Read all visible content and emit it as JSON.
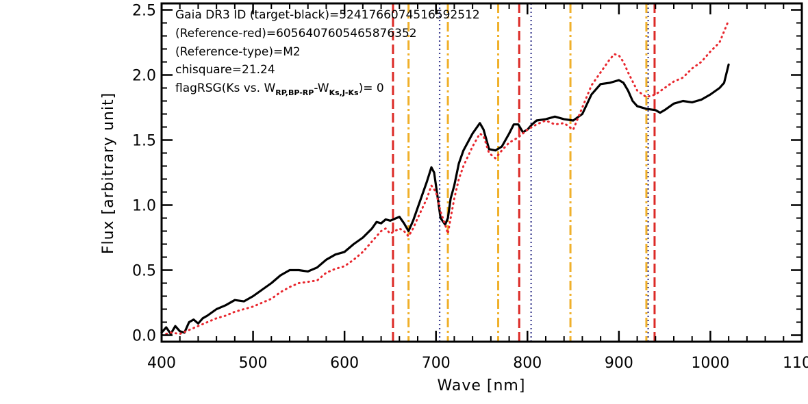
{
  "chart_data": {
    "type": "line",
    "xlabel": "Wave [nm]",
    "ylabel": "Flux [arbitrary unit]",
    "xlim": [
      400,
      1100
    ],
    "ylim": [
      -0.05,
      2.55
    ],
    "xticks": [
      400,
      500,
      600,
      700,
      800,
      900,
      1000,
      1100
    ],
    "xtick_labels": [
      "400",
      "500",
      "600",
      "700",
      "800",
      "900",
      "1000",
      "1100"
    ],
    "yticks": [
      0.0,
      0.5,
      1.0,
      1.5,
      2.0,
      2.5
    ],
    "ytick_labels": [
      "0.0",
      "0.5",
      "1.0",
      "1.5",
      "2.0",
      "2.5"
    ],
    "annotations": {
      "line1": "Gaia DR3 ID (target-black)=5241766074516592512",
      "line2": "(Reference-red)=6056407605465876352",
      "line3": "(Reference-type)=M2",
      "line4": "chisquare=21.24",
      "line5_pre": "flagRSG(Ks vs. W",
      "line5_sub1": "RP,BP-RP",
      "line5_mid": "-W",
      "line5_sub2": "Ks,J-Ks",
      "line5_post": ")= 0"
    },
    "series": [
      {
        "color": "#000000",
        "style": "solid",
        "x": [
          400,
          405,
          410,
          415,
          420,
          425,
          430,
          435,
          440,
          445,
          450,
          460,
          470,
          480,
          490,
          500,
          510,
          520,
          530,
          540,
          550,
          560,
          570,
          580,
          590,
          600,
          610,
          620,
          630,
          635,
          640,
          645,
          650,
          660,
          665,
          670,
          675,
          680,
          690,
          695,
          698,
          702,
          705,
          710,
          713,
          716,
          720,
          725,
          730,
          740,
          748,
          752,
          758,
          765,
          772,
          780,
          785,
          790,
          795,
          800,
          805,
          810,
          820,
          830,
          840,
          850,
          860,
          870,
          880,
          890,
          895,
          900,
          905,
          910,
          915,
          920,
          930,
          940,
          945,
          950,
          960,
          970,
          980,
          990,
          1000,
          1010,
          1015,
          1020
        ],
        "y": [
          0.02,
          0.06,
          0.01,
          0.07,
          0.03,
          0.02,
          0.1,
          0.12,
          0.09,
          0.13,
          0.15,
          0.2,
          0.23,
          0.27,
          0.26,
          0.3,
          0.35,
          0.4,
          0.46,
          0.5,
          0.5,
          0.49,
          0.52,
          0.58,
          0.62,
          0.64,
          0.7,
          0.75,
          0.82,
          0.87,
          0.86,
          0.89,
          0.88,
          0.91,
          0.86,
          0.8,
          0.88,
          0.98,
          1.18,
          1.29,
          1.25,
          1.05,
          0.9,
          0.85,
          0.9,
          1.05,
          1.15,
          1.32,
          1.42,
          1.55,
          1.63,
          1.58,
          1.43,
          1.42,
          1.45,
          1.55,
          1.62,
          1.62,
          1.56,
          1.58,
          1.62,
          1.65,
          1.66,
          1.68,
          1.66,
          1.65,
          1.7,
          1.85,
          1.93,
          1.94,
          1.95,
          1.96,
          1.94,
          1.88,
          1.8,
          1.76,
          1.74,
          1.73,
          1.71,
          1.73,
          1.78,
          1.8,
          1.79,
          1.81,
          1.85,
          1.9,
          1.94,
          2.08
        ]
      },
      {
        "color": "#e8272e",
        "style": "dotted",
        "x": [
          400,
          410,
          420,
          430,
          440,
          450,
          460,
          470,
          480,
          490,
          500,
          510,
          520,
          530,
          540,
          550,
          560,
          570,
          580,
          590,
          600,
          610,
          620,
          630,
          640,
          645,
          650,
          660,
          665,
          670,
          675,
          680,
          690,
          695,
          700,
          705,
          710,
          713,
          716,
          720,
          725,
          730,
          740,
          748,
          752,
          758,
          765,
          772,
          780,
          785,
          790,
          800,
          810,
          820,
          830,
          840,
          850,
          860,
          870,
          880,
          890,
          895,
          900,
          905,
          910,
          920,
          930,
          940,
          950,
          960,
          970,
          980,
          990,
          1000,
          1010,
          1020
        ],
        "y": [
          0.0,
          0.02,
          0.01,
          0.04,
          0.07,
          0.1,
          0.13,
          0.15,
          0.18,
          0.2,
          0.22,
          0.25,
          0.28,
          0.33,
          0.37,
          0.4,
          0.41,
          0.42,
          0.48,
          0.51,
          0.53,
          0.58,
          0.64,
          0.72,
          0.8,
          0.82,
          0.78,
          0.82,
          0.8,
          0.76,
          0.82,
          0.9,
          1.05,
          1.15,
          1.1,
          0.95,
          0.85,
          0.78,
          0.9,
          1.05,
          1.2,
          1.3,
          1.45,
          1.55,
          1.53,
          1.4,
          1.36,
          1.42,
          1.48,
          1.5,
          1.52,
          1.58,
          1.62,
          1.65,
          1.62,
          1.63,
          1.58,
          1.75,
          1.92,
          2.02,
          2.12,
          2.16,
          2.15,
          2.1,
          2.02,
          1.88,
          1.83,
          1.85,
          1.9,
          1.95,
          1.98,
          2.05,
          2.1,
          2.18,
          2.25,
          2.42
        ]
      }
    ],
    "vertical_lines": [
      {
        "x": 653,
        "color": "#dc2a26",
        "style": "dashed"
      },
      {
        "x": 670,
        "color": "#f0b02a",
        "style": "dashdot"
      },
      {
        "x": 704,
        "color": "#3e3f91",
        "style": "dotted"
      },
      {
        "x": 713,
        "color": "#f0b02a",
        "style": "dashdot"
      },
      {
        "x": 768,
        "color": "#f0b02a",
        "style": "dashdot"
      },
      {
        "x": 791,
        "color": "#dc2a26",
        "style": "dashed"
      },
      {
        "x": 804,
        "color": "#3e3f91",
        "style": "dotted"
      },
      {
        "x": 847,
        "color": "#f0b02a",
        "style": "dashdot"
      },
      {
        "x": 930,
        "color": "#f0b02a",
        "style": "dashdot"
      },
      {
        "x": 932,
        "color": "#3e3f91",
        "style": "dotted"
      },
      {
        "x": 939,
        "color": "#dc2a26",
        "style": "dashed"
      }
    ]
  }
}
